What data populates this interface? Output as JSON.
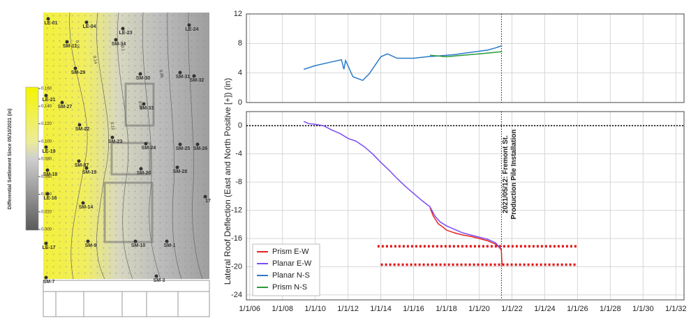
{
  "map": {
    "colorbar_label": "Differential Settlement Since 05/10/2021 (in)",
    "clim": [
      0,
      0.16
    ],
    "colorbar_ticks": [
      {
        "value": 0.16,
        "label": "0.160"
      },
      {
        "value": 0.14,
        "label": "0.140"
      },
      {
        "value": 0.12,
        "label": "0.120"
      },
      {
        "value": 0.1,
        "label": "0.100"
      },
      {
        "value": 0.08,
        "label": "0.080"
      },
      {
        "value": 0.06,
        "label": "0.060"
      },
      {
        "value": 0.04,
        "label": "0.040"
      },
      {
        "value": 0.02,
        "label": "0.020"
      },
      {
        "value": 0,
        "label": "0.000"
      }
    ],
    "points": [
      "LE-01",
      "LE-04",
      "LE-23",
      "LE-24",
      "SM-11",
      "SM-34",
      "SM-29",
      "SM-30",
      "SM-31",
      "SM-32",
      "LE-21",
      "SM-27",
      "SM-33",
      "SM-22",
      "SM-23",
      "LE-19",
      "SM-24",
      "SM-25",
      "SM-26",
      "SM-87",
      "SM-19",
      "SM-18",
      "SM-20",
      "SM-28",
      "LE-16",
      "SM-14",
      "17",
      "LE-17",
      "SM-9",
      "SM-10",
      "SM-1",
      "SM-7",
      "SM-3"
    ],
    "contour_labels": [
      "0.16",
      "0.14",
      "0.12",
      "0.1",
      "0.08",
      "0.06"
    ]
  },
  "chart_data": [
    {
      "type": "line",
      "xlim": [
        2005.8,
        2032.5
      ],
      "ylim": [
        0,
        12
      ],
      "yticks": [
        0,
        4,
        8,
        12
      ],
      "grid": true,
      "vline": {
        "x": 2021.36
      },
      "series": [
        {
          "name": "Planar N-S",
          "color": "#2a7ac8",
          "x": [
            2009.3,
            2010,
            2010.8,
            2011.6,
            2011.75,
            2011.85,
            2012.3,
            2012.9,
            2013.3,
            2014,
            2014.4,
            2015,
            2016,
            2016.8,
            2017.5,
            2018.5,
            2019.5,
            2020.5,
            2021,
            2021.4
          ],
          "values": [
            4.5,
            5.0,
            5.4,
            5.8,
            4.5,
            5.7,
            3.5,
            3.0,
            3.9,
            6.2,
            6.6,
            6.0,
            6.0,
            6.2,
            6.3,
            6.5,
            6.8,
            7.1,
            7.4,
            7.7
          ]
        },
        {
          "name": "Prism N-S",
          "color": "#2a9a3a",
          "x": [
            2017,
            2017.5,
            2018,
            2018.5,
            2019,
            2019.5,
            2020,
            2020.5,
            2021,
            2021.4
          ],
          "values": [
            6.4,
            6.3,
            6.2,
            6.3,
            6.4,
            6.5,
            6.6,
            6.7,
            6.8,
            6.9
          ]
        }
      ]
    },
    {
      "type": "line",
      "ylabel": "Lateral Roof Deflection (East and North Positive [+]) (in)",
      "xlim": [
        2005.8,
        2032.5
      ],
      "ylim": [
        -24.7,
        2
      ],
      "xticks": [
        {
          "value": 2006,
          "label": "1/1/06"
        },
        {
          "value": 2008,
          "label": "1/1/08"
        },
        {
          "value": 2010,
          "label": "1/1/10"
        },
        {
          "value": 2012,
          "label": "1/1/12"
        },
        {
          "value": 2014,
          "label": "1/1/14"
        },
        {
          "value": 2016,
          "label": "1/1/16"
        },
        {
          "value": 2018,
          "label": "1/1/18"
        },
        {
          "value": 2020,
          "label": "1/1/20"
        },
        {
          "value": 2022,
          "label": "1/1/22"
        },
        {
          "value": 2024,
          "label": "1/1/24"
        },
        {
          "value": 2026,
          "label": "1/1/26"
        },
        {
          "value": 2028,
          "label": "1/1/28"
        },
        {
          "value": 2030,
          "label": "1/1/30"
        },
        {
          "value": 2032,
          "label": "1/1/32"
        }
      ],
      "yticks": [
        0,
        -4,
        -8,
        -12,
        -16,
        -20,
        -24
      ],
      "grid": true,
      "legend": "lower left",
      "vline": {
        "x": 2021.36,
        "label": [
          "2021/05/12: Fremont St.",
          "Production Pile Installation"
        ]
      },
      "hlines": [
        {
          "y": 0,
          "color": "#000000"
        },
        {
          "y": -17.1,
          "x": [
            2013.8,
            2026
          ],
          "color": "#e01515"
        },
        {
          "y": -19.7,
          "x": [
            2014,
            2026
          ],
          "color": "#e01515"
        }
      ],
      "series": [
        {
          "name": "Prism E-W",
          "color": "#e8201f",
          "x": [
            2017,
            2017.2,
            2017.5,
            2017.8,
            2018,
            2018.5,
            2019,
            2019.5,
            2020,
            2020.5,
            2021,
            2021.2,
            2021.35,
            2021.4
          ],
          "values": [
            -11.6,
            -12.8,
            -13.9,
            -14.4,
            -14.8,
            -15.2,
            -15.5,
            -15.7,
            -16.0,
            -16.3,
            -16.8,
            -17.2,
            -17.6,
            -19.8
          ]
        },
        {
          "name": "Planar E-W",
          "color": "#7b4cf5",
          "x": [
            2009.3,
            2009.6,
            2010,
            2010.5,
            2011,
            2011.5,
            2012,
            2012.5,
            2013,
            2013.5,
            2014,
            2014.5,
            2015,
            2015.5,
            2016,
            2016.5,
            2017,
            2017.3,
            2017.6,
            2018,
            2018.5,
            2019,
            2019.5,
            2020,
            2020.5,
            2021,
            2021.3
          ],
          "values": [
            0.6,
            0.3,
            0.2,
            0.0,
            -0.6,
            -1.1,
            -1.8,
            -2.2,
            -3.0,
            -4.0,
            -5.2,
            -6.3,
            -7.5,
            -8.6,
            -9.6,
            -10.6,
            -11.5,
            -12.8,
            -13.6,
            -14.2,
            -14.7,
            -15.2,
            -15.5,
            -15.8,
            -16.1,
            -16.6,
            -17.4
          ]
        }
      ]
    }
  ]
}
